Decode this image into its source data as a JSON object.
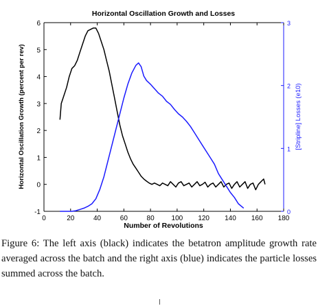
{
  "chart_data": {
    "type": "line",
    "title": "Horizontal Oscillation Growth and Losses",
    "xlabel": "Number of Revolutions",
    "ylabel_left": "Horizontal Oscillation Growth (percent per rev)",
    "ylabel_right": "[Stripline] Losses (e10)",
    "xlim": [
      0,
      180
    ],
    "ylim_left": [
      -1,
      6
    ],
    "ylim_right": [
      0,
      3
    ],
    "x_ticks": [
      "0",
      "20",
      "40",
      "60",
      "80",
      "100",
      "120",
      "140",
      "160",
      "180"
    ],
    "y_ticks_left": [
      "-1",
      "0",
      "1",
      "2",
      "3",
      "4",
      "5",
      "6"
    ],
    "y_ticks_right": [
      "0",
      "1",
      "2",
      "3"
    ],
    "grid": false,
    "colors": {
      "left_series": "#000000",
      "right_series": "#1a1aff",
      "axes": "#000000"
    },
    "series": [
      {
        "axis": "left",
        "x": [
          12,
          13,
          15,
          17,
          19,
          21,
          23,
          25,
          27,
          29,
          31,
          33,
          35,
          37,
          39,
          41,
          43,
          45,
          47,
          49,
          51,
          53,
          55,
          57,
          59,
          61,
          63,
          65,
          67,
          69,
          71,
          73,
          75,
          77,
          79,
          81,
          83,
          85,
          87,
          89,
          91,
          93,
          95,
          97,
          99,
          101,
          103,
          105,
          107,
          109,
          111,
          113,
          115,
          117,
          119,
          121,
          123,
          125,
          127,
          129,
          131,
          133,
          135,
          137,
          139,
          141,
          143,
          145,
          147,
          149,
          151,
          153,
          155,
          157,
          159,
          161,
          163,
          165,
          166
        ],
        "values": [
          2.4,
          3.0,
          3.3,
          3.6,
          4.0,
          4.3,
          4.4,
          4.6,
          4.9,
          5.2,
          5.5,
          5.7,
          5.75,
          5.8,
          5.8,
          5.6,
          5.3,
          5.0,
          4.6,
          4.2,
          3.7,
          3.2,
          2.7,
          2.2,
          1.8,
          1.5,
          1.2,
          0.95,
          0.75,
          0.6,
          0.45,
          0.3,
          0.2,
          0.12,
          0.05,
          0.0,
          0.05,
          0.0,
          -0.05,
          0.05,
          0.0,
          -0.05,
          0.1,
          0.0,
          -0.1,
          0.05,
          0.1,
          -0.05,
          0.0,
          0.05,
          -0.1,
          0.0,
          0.1,
          -0.05,
          0.0,
          0.08,
          -0.1,
          0.0,
          0.05,
          -0.1,
          0.0,
          0.1,
          -0.1,
          0.0,
          0.05,
          -0.15,
          0.0,
          0.1,
          -0.1,
          0.0,
          0.1,
          -0.15,
          0.0,
          0.05,
          -0.2,
          0.0,
          0.1,
          0.2,
          0.0
        ]
      },
      {
        "axis": "right",
        "x": [
          12,
          15,
          18,
          21,
          24,
          27,
          30,
          33,
          36,
          39,
          42,
          45,
          48,
          51,
          54,
          57,
          60,
          63,
          66,
          69,
          71,
          73,
          75,
          77,
          80,
          83,
          86,
          89,
          92,
          95,
          98,
          101,
          104,
          107,
          110,
          113,
          116,
          119,
          122,
          125,
          128,
          131,
          134,
          137,
          140,
          143,
          146,
          150
        ],
        "values": [
          0.0,
          0.0,
          0.0,
          0.0,
          0.01,
          0.03,
          0.05,
          0.08,
          0.12,
          0.2,
          0.35,
          0.55,
          0.8,
          1.05,
          1.3,
          1.55,
          1.8,
          2.02,
          2.2,
          2.32,
          2.36,
          2.3,
          2.15,
          2.08,
          2.02,
          1.95,
          1.88,
          1.83,
          1.75,
          1.7,
          1.62,
          1.55,
          1.5,
          1.43,
          1.35,
          1.25,
          1.15,
          1.05,
          0.95,
          0.85,
          0.75,
          0.6,
          0.5,
          0.4,
          0.3,
          0.22,
          0.12,
          0.05
        ]
      }
    ]
  },
  "caption": "Figure 6: The left axis (black) indicates the betatron amplitude growth rate averaged across the batch and the right axis (blue) indicates the particle losses summed across the batch."
}
